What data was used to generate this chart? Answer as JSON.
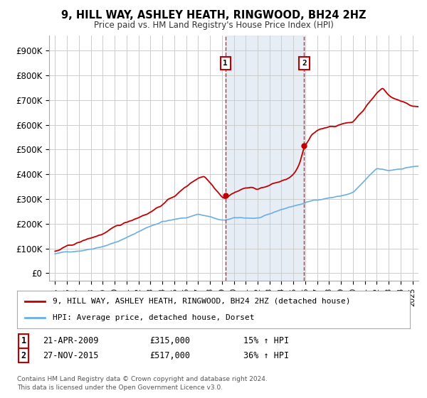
{
  "title": "9, HILL WAY, ASHLEY HEATH, RINGWOOD, BH24 2HZ",
  "subtitle": "Price paid vs. HM Land Registry's House Price Index (HPI)",
  "background_color": "#ffffff",
  "plot_bg_color": "#ffffff",
  "grid_color": "#cccccc",
  "hpi_color": "#6aaee6",
  "house_color": "#c00000",
  "annotation_fill": "#dce6f1",
  "yticks": [
    0,
    100000,
    200000,
    300000,
    400000,
    500000,
    600000,
    700000,
    800000,
    900000
  ],
  "ytick_labels": [
    "£0",
    "£100K",
    "£200K",
    "£300K",
    "£400K",
    "£500K",
    "£600K",
    "£700K",
    "£800K",
    "£900K"
  ],
  "legend_label_house": "9, HILL WAY, ASHLEY HEATH, RINGWOOD, BH24 2HZ (detached house)",
  "legend_label_hpi": "HPI: Average price, detached house, Dorset",
  "sale1_date": "21-APR-2009",
  "sale1_price": 315000,
  "sale1_hpi": "15% ↑ HPI",
  "sale1_x": 2009.3,
  "sale2_date": "27-NOV-2015",
  "sale2_price": 517000,
  "sale2_hpi": "36% ↑ HPI",
  "sale2_x": 2015.9,
  "footnote": "Contains HM Land Registry data © Crown copyright and database right 2024.\nThis data is licensed under the Open Government Licence v3.0.",
  "xlim_left": 1994.5,
  "xlim_right": 2025.5,
  "ylim_top": 960000,
  "ylim_bottom": -30000
}
